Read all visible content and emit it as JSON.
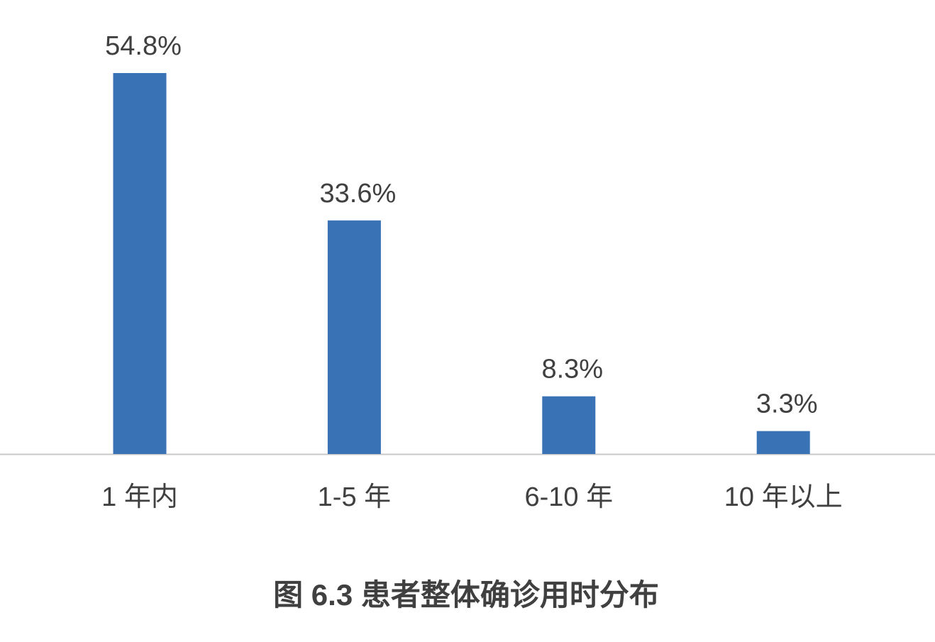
{
  "chart_data": {
    "type": "bar",
    "title": "图 6.3 患者整体确诊用时分布",
    "categories": [
      "1 年内",
      "1-5 年",
      "6-10 年",
      "10 年以上"
    ],
    "values": [
      54.8,
      33.6,
      8.3,
      3.3
    ],
    "value_labels": [
      "54.8%",
      "33.6%",
      "8.3%",
      "3.3%"
    ],
    "color": "#3a72b6"
  }
}
